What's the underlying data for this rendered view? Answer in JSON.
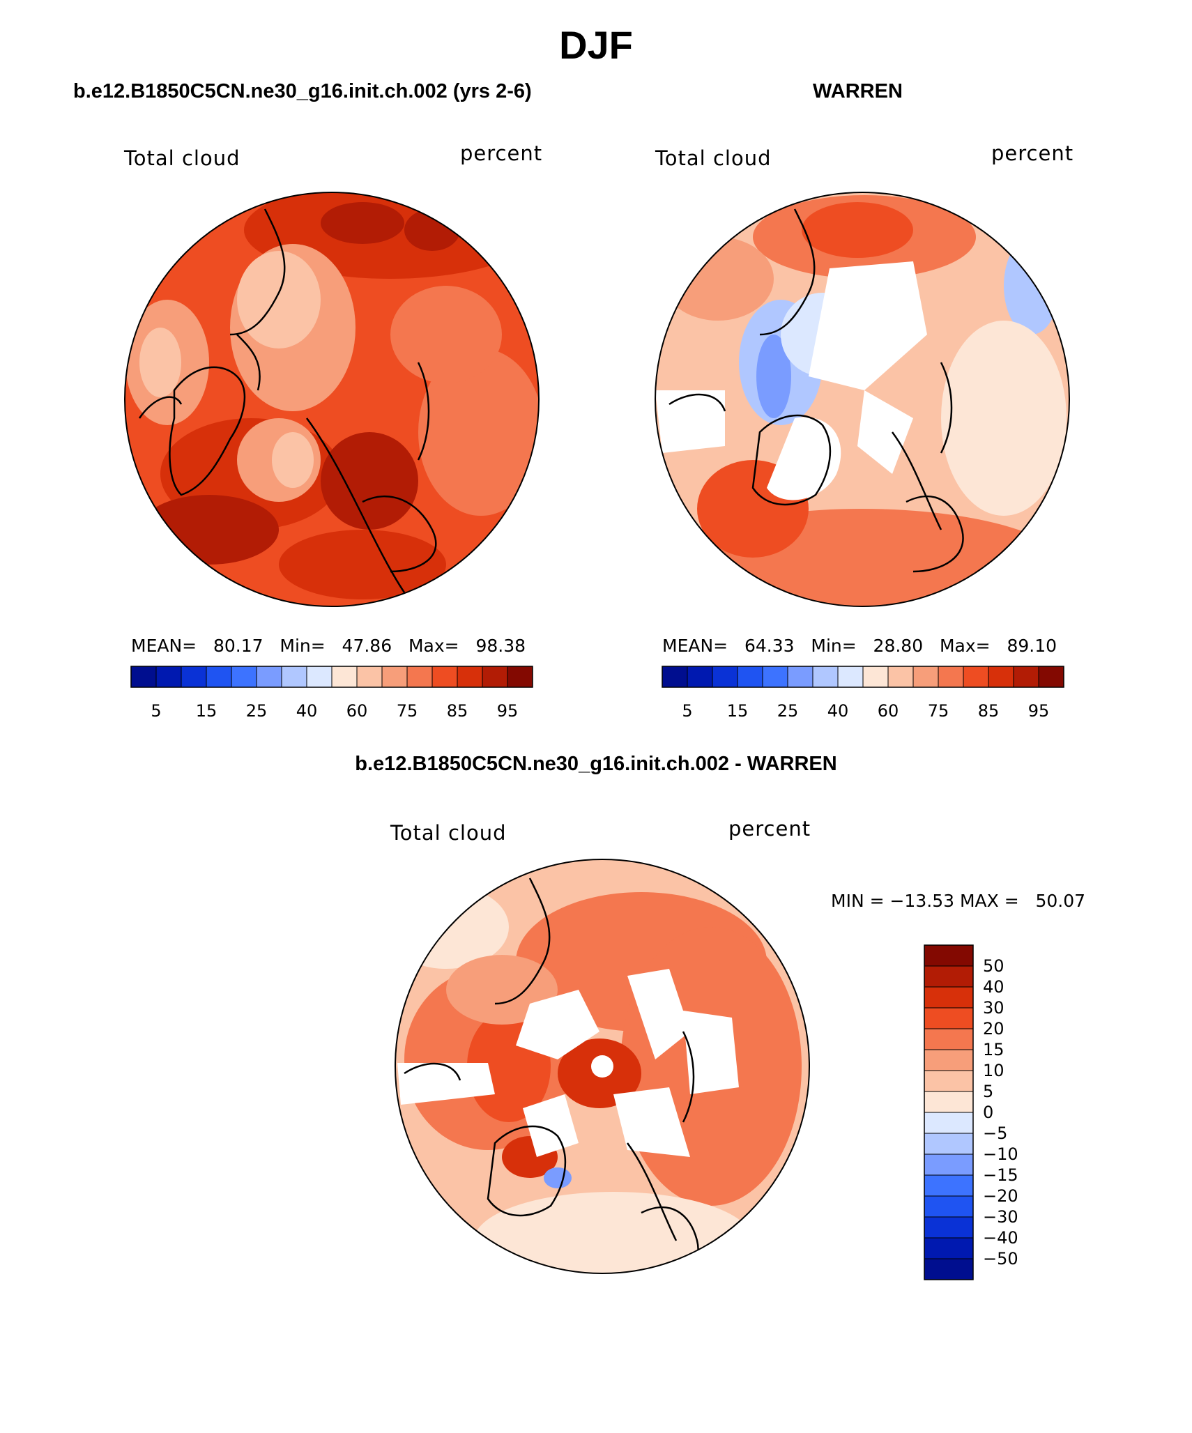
{
  "title": "DJF",
  "panels": [
    {
      "id": "model",
      "heading": "b.e12.B1850C5CN.ne30_g16.init.ch.002 (yrs 2-6)",
      "variable": "Total cloud",
      "units": "percent",
      "stats": {
        "mean_label": "MEAN=",
        "mean": "80.17",
        "min_label": "Min=",
        "min": "47.86",
        "max_label": "Max=",
        "max": "98.38"
      },
      "colorbar_ticks": [
        "5",
        "15",
        "25",
        "40",
        "60",
        "75",
        "85",
        "95"
      ]
    },
    {
      "id": "obs",
      "heading": "WARREN",
      "variable": "Total cloud",
      "units": "percent",
      "stats": {
        "mean_label": "MEAN=",
        "mean": "64.33",
        "min_label": "Min=",
        "min": "28.80",
        "max_label": "Max=",
        "max": "89.10"
      },
      "colorbar_ticks": [
        "5",
        "15",
        "25",
        "40",
        "60",
        "75",
        "85",
        "95"
      ]
    },
    {
      "id": "diff",
      "heading": "b.e12.B1850C5CN.ne30_g16.init.ch.002 - WARREN",
      "variable": "Total cloud",
      "units": "percent",
      "minmax": "MIN = −13.53 MAX =   50.07",
      "colorbar_ticks": [
        "50",
        "40",
        "30",
        "20",
        "15",
        "10",
        "5",
        "0",
        "−5",
        "−10",
        "−15",
        "−20",
        "−30",
        "−40",
        "−50"
      ]
    }
  ],
  "palette": {
    "abs": [
      "#000e8f",
      "#0019b0",
      "#0a32d6",
      "#1f54f2",
      "#3d73ff",
      "#7a9cff",
      "#b0c7ff",
      "#dce8ff",
      "#fde6d6",
      "#fbc3a6",
      "#f79e7a",
      "#f4774f",
      "#ee4d22",
      "#d7300a",
      "#b21c05",
      "#830901"
    ],
    "diff": [
      "#830901",
      "#b21c05",
      "#d7300a",
      "#ee4d22",
      "#f4774f",
      "#f79e7a",
      "#fbc3a6",
      "#fde6d6",
      "#dce8ff",
      "#b0c7ff",
      "#7a9cff",
      "#3d73ff",
      "#1f54f2",
      "#0a32d6",
      "#0019b0",
      "#000e8f"
    ]
  }
}
